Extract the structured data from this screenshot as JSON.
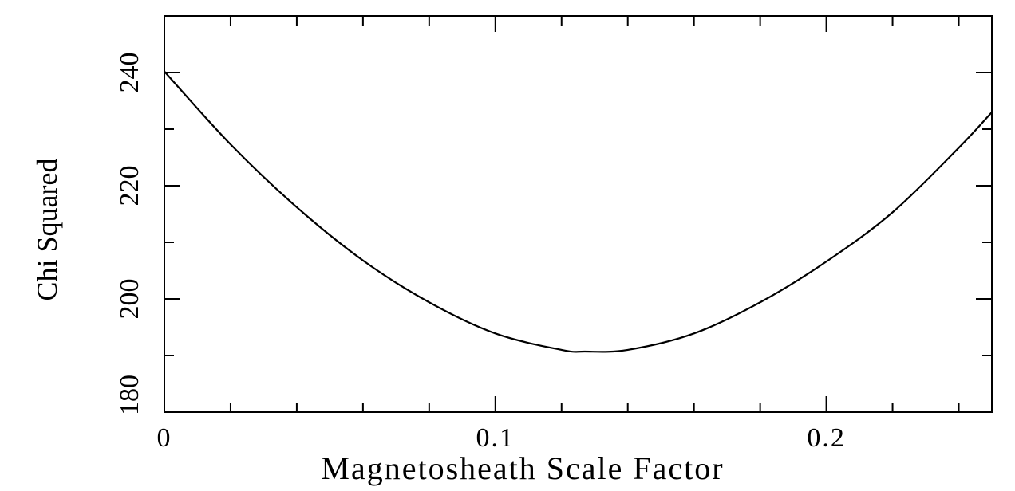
{
  "chart_data": {
    "type": "line",
    "title": "",
    "xlabel": "Magnetosheath Scale Factor",
    "ylabel": "Chi Squared",
    "xlim": [
      0,
      0.25
    ],
    "ylim": [
      180,
      250
    ],
    "x_ticks_major": [
      0,
      0.1,
      0.2
    ],
    "x_tick_labels": [
      "0",
      "0.1",
      "0.2"
    ],
    "x_ticks_minor": [
      0.02,
      0.04,
      0.06,
      0.08,
      0.12,
      0.14,
      0.16,
      0.18,
      0.22,
      0.24
    ],
    "y_ticks_major": [
      180,
      200,
      220,
      240
    ],
    "y_tick_labels": [
      "180",
      "200",
      "220",
      "240"
    ],
    "y_ticks_minor": [
      190,
      210,
      230
    ],
    "grid": false,
    "series": [
      {
        "x": [
          0,
          0.02,
          0.04,
          0.06,
          0.08,
          0.1,
          0.12,
          0.127,
          0.14,
          0.16,
          0.18,
          0.2,
          0.22,
          0.24,
          0.25
        ],
        "y": [
          240.2,
          227.3,
          216.2,
          206.8,
          199.4,
          193.9,
          191.0,
          190.7,
          191.0,
          193.9,
          199.4,
          206.6,
          215.3,
          226.7,
          233.0
        ]
      }
    ]
  }
}
